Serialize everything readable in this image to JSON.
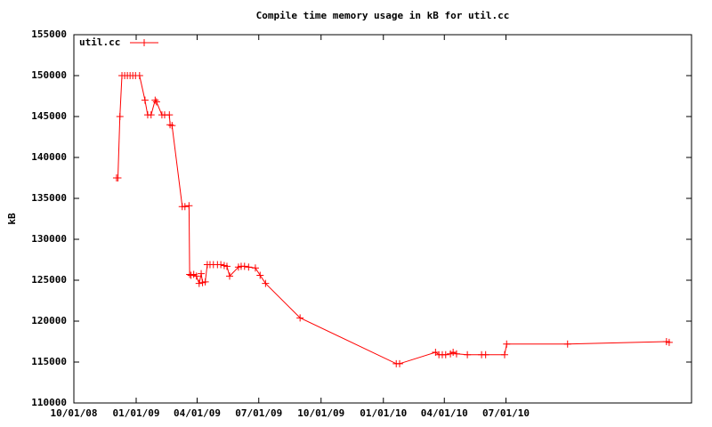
{
  "chart_data": {
    "type": "line",
    "title": "Compile time memory usage in kB for util.cc",
    "y_label": "kB",
    "x": [
      "12/03/08",
      "12/05/08",
      "12/08/08",
      "12/11/08",
      "12/15/08",
      "12/19/08",
      "12/23/08",
      "12/27/08",
      "12/31/08",
      "01/06/09",
      "01/14/09",
      "01/18/09",
      "01/23/09",
      "01/29/09",
      "01/31/09",
      "02/08/09",
      "02/12/09",
      "02/19/09",
      "02/20/09",
      "02/23/09",
      "03/10/09",
      "03/14/09",
      "03/20/09",
      "03/21/09",
      "03/23/09",
      "03/27/09",
      "03/31/09",
      "04/04/09",
      "04/07/09",
      "04/09/09",
      "04/13/09",
      "04/16/09",
      "04/20/09",
      "04/25/09",
      "05/01/09",
      "05/06/09",
      "05/11/09",
      "05/15/09",
      "05/19/09",
      "06/01/09",
      "06/05/09",
      "06/10/09",
      "06/16/09",
      "06/26/09",
      "07/03/09",
      "07/11/09",
      "08/31/09",
      "01/20/10",
      "01/25/10",
      "03/19/10",
      "03/24/10",
      "03/29/10",
      "04/03/10",
      "04/10/10",
      "04/14/10",
      "04/19/10",
      "05/05/10",
      "05/26/10",
      "06/01/10",
      "06/29/10",
      "07/02/10",
      "09/30/10",
      "02/23/11",
      "02/27/11"
    ],
    "series": [
      {
        "name": "util.cc",
        "color": "#ff0000",
        "values": [
          137500,
          137500,
          145000,
          150000,
          150000,
          150000,
          150000,
          150000,
          150000,
          150000,
          147000,
          145200,
          145200,
          147000,
          146800,
          145200,
          145200,
          145200,
          144000,
          143900,
          134000,
          134000,
          134100,
          125700,
          125600,
          125700,
          125500,
          124600,
          125800,
          124700,
          124800,
          126900,
          126900,
          126900,
          126900,
          126900,
          126800,
          126700,
          125500,
          126600,
          126700,
          126700,
          126600,
          126500,
          125600,
          124600,
          120400,
          114800,
          114800,
          116200,
          115900,
          115900,
          115900,
          116000,
          116200,
          116000,
          115900,
          115900,
          115900,
          115900,
          117200,
          117200,
          117500,
          117400
        ]
      }
    ],
    "xlim": [
      "10/01/08",
      "04/01/11"
    ],
    "xticks": [
      "10/01/08",
      "01/01/09",
      "04/01/09",
      "07/01/09",
      "10/01/09",
      "01/01/10",
      "04/01/10",
      "07/01/10"
    ],
    "ylim": [
      110000,
      155000
    ],
    "yticks": [
      110000,
      115000,
      120000,
      125000,
      130000,
      135000,
      140000,
      145000,
      150000,
      155000
    ],
    "legend": "top-left"
  }
}
